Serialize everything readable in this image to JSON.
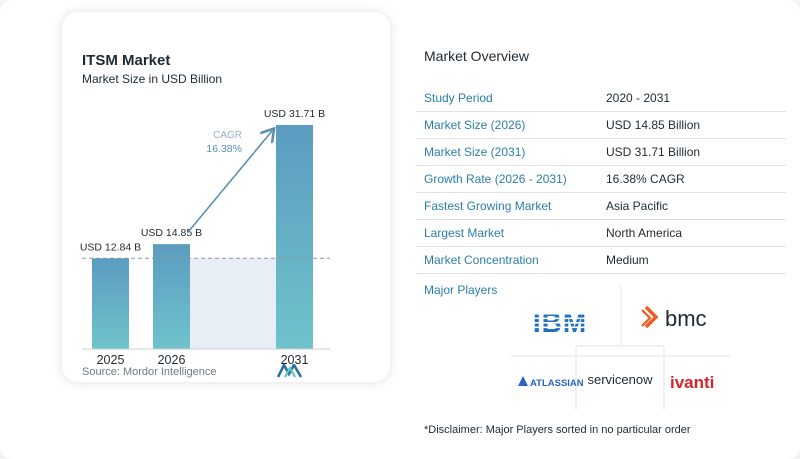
{
  "chart_data": {
    "type": "bar",
    "title": "ITSM Market",
    "subtitle": "Market Size in USD Billion",
    "categories": [
      "2025",
      "2026",
      "2031"
    ],
    "values": [
      12.84,
      14.85,
      31.71
    ],
    "value_labels": [
      "USD 12.84 B",
      "USD 14.85 B",
      "USD 31.71 B"
    ],
    "cagr_label": "CAGR",
    "cagr_value": "16.38%",
    "ylim": [
      0,
      31.71
    ],
    "colors": {
      "bar_top": "#5b9cc0",
      "bar_bottom": "#6fc3cc",
      "accent": "#5b8fb0"
    }
  },
  "source": "Source: Mordor Intelligence",
  "overview": {
    "title": "Market Overview",
    "rows": [
      {
        "key": "Study Period",
        "value": "2020 - 2031"
      },
      {
        "key": "Market Size (2026)",
        "value": "USD 14.85 Billion"
      },
      {
        "key": "Market Size (2031)",
        "value": "USD 31.71 Billion"
      },
      {
        "key": "Growth Rate (2026 - 2031)",
        "value": "16.38% CAGR"
      },
      {
        "key": "Fastest Growing Market",
        "value": "Asia Pacific"
      },
      {
        "key": "Largest Market",
        "value": "North America"
      },
      {
        "key": "Market Concentration",
        "value": "Medium"
      }
    ]
  },
  "players": {
    "title": "Major Players",
    "logos": [
      "IBM",
      "bmc",
      "ATLASSIAN",
      "servicenow",
      "ivanti"
    ],
    "logo_colors": {
      "ibm": "#1f70c1",
      "bmc": "#f05a22",
      "atlassian": "#2a64c4",
      "servicenow": "#1f2a33",
      "ivanti": "#d8232a"
    }
  },
  "disclaimer": "*Disclaimer: Major Players sorted in no particular order"
}
